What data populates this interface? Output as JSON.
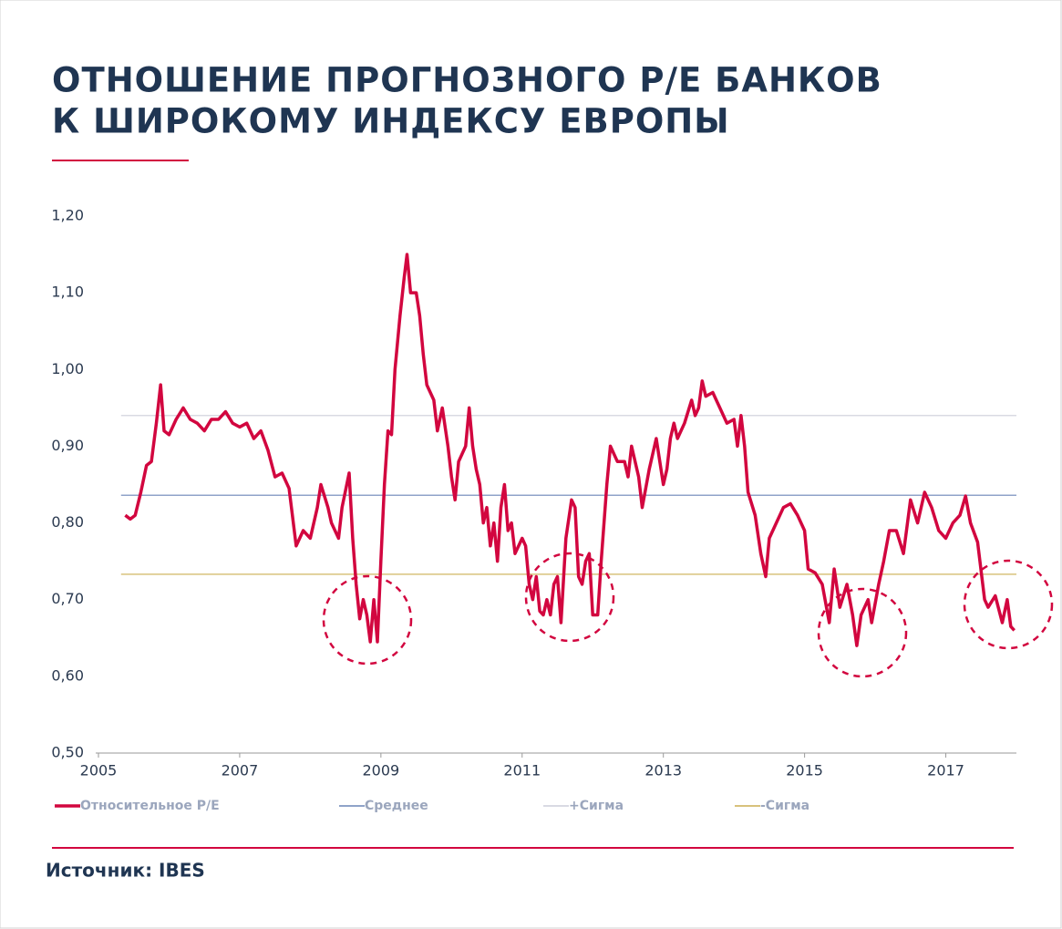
{
  "chart_data": {
    "type": "line",
    "title": [
      "ОТНОШЕНИЕ ПРОГНОЗНОГО Р/Е БАНКОВ",
      "К ШИРОКОМУ ИНДЕКСУ ЕВРОПЫ"
    ],
    "source": "Источник: IBES",
    "xlim": [
      2005,
      2018
    ],
    "xticks": [
      2005,
      2007,
      2009,
      2011,
      2013,
      2015,
      2017
    ],
    "ylim": [
      0.5,
      1.2
    ],
    "yticks": [
      {
        "value": 0.5,
        "label": "0,50"
      },
      {
        "value": 0.6,
        "label": "0,60"
      },
      {
        "value": 0.7,
        "label": "0,70"
      },
      {
        "value": 0.8,
        "label": "0,80"
      },
      {
        "value": 0.9,
        "label": "0,90"
      },
      {
        "value": 1.0,
        "label": "1,00"
      },
      {
        "value": 1.1,
        "label": "1,10"
      },
      {
        "value": 1.2,
        "label": "1,20"
      }
    ],
    "series": [
      {
        "name": "Относительное Р/Е",
        "color": "#d2063f",
        "x": [
          2005.38,
          2005.45,
          2005.52,
          2005.6,
          2005.68,
          2005.75,
          2005.82,
          2005.88,
          2005.93,
          2006.0,
          2006.1,
          2006.2,
          2006.3,
          2006.4,
          2006.5,
          2006.6,
          2006.7,
          2006.8,
          2006.9,
          2007.0,
          2007.1,
          2007.2,
          2007.3,
          2007.4,
          2007.5,
          2007.6,
          2007.7,
          2007.8,
          2007.9,
          2008.0,
          2008.1,
          2008.15,
          2008.25,
          2008.3,
          2008.4,
          2008.45,
          2008.55,
          2008.6,
          2008.65,
          2008.7,
          2008.75,
          2008.8,
          2008.85,
          2008.9,
          2008.95,
          2009.0,
          2009.05,
          2009.1,
          2009.15,
          2009.2,
          2009.27,
          2009.33,
          2009.37,
          2009.42,
          2009.5,
          2009.55,
          2009.6,
          2009.65,
          2009.75,
          2009.8,
          2009.87,
          2009.95,
          2010.0,
          2010.05,
          2010.1,
          2010.2,
          2010.25,
          2010.3,
          2010.35,
          2010.4,
          2010.45,
          2010.5,
          2010.55,
          2010.6,
          2010.65,
          2010.7,
          2010.75,
          2010.8,
          2010.85,
          2010.9,
          2011.0,
          2011.05,
          2011.1,
          2011.15,
          2011.2,
          2011.25,
          2011.3,
          2011.35,
          2011.4,
          2011.45,
          2011.5,
          2011.55,
          2011.62,
          2011.7,
          2011.75,
          2011.8,
          2011.85,
          2011.9,
          2011.95,
          2012.0,
          2012.07,
          2012.12,
          2012.2,
          2012.25,
          2012.35,
          2012.45,
          2012.5,
          2012.55,
          2012.65,
          2012.7,
          2012.8,
          2012.9,
          2012.95,
          2013.0,
          2013.05,
          2013.1,
          2013.15,
          2013.2,
          2013.3,
          2013.4,
          2013.45,
          2013.5,
          2013.55,
          2013.6,
          2013.7,
          2013.8,
          2013.9,
          2014.0,
          2014.05,
          2014.1,
          2014.15,
          2014.2,
          2014.3,
          2014.38,
          2014.45,
          2014.5,
          2014.6,
          2014.7,
          2014.8,
          2014.9,
          2015.0,
          2015.05,
          2015.15,
          2015.25,
          2015.35,
          2015.42,
          2015.5,
          2015.6,
          2015.68,
          2015.74,
          2015.8,
          2015.9,
          2015.95,
          2016.05,
          2016.12,
          2016.2,
          2016.3,
          2016.4,
          2016.5,
          2016.6,
          2016.7,
          2016.8,
          2016.9,
          2017.0,
          2017.1,
          2017.2,
          2017.28,
          2017.35,
          2017.45,
          2017.55,
          2017.6,
          2017.7,
          2017.8,
          2017.87,
          2017.92,
          2017.97
        ],
        "values": [
          0.81,
          0.805,
          0.81,
          0.84,
          0.875,
          0.88,
          0.93,
          0.98,
          0.92,
          0.915,
          0.935,
          0.95,
          0.935,
          0.93,
          0.92,
          0.935,
          0.935,
          0.945,
          0.93,
          0.925,
          0.93,
          0.91,
          0.92,
          0.895,
          0.86,
          0.865,
          0.845,
          0.77,
          0.79,
          0.78,
          0.82,
          0.85,
          0.82,
          0.8,
          0.78,
          0.82,
          0.865,
          0.78,
          0.72,
          0.675,
          0.7,
          0.68,
          0.645,
          0.7,
          0.645,
          0.75,
          0.85,
          0.92,
          0.915,
          1.0,
          1.07,
          1.12,
          1.15,
          1.1,
          1.1,
          1.07,
          1.02,
          0.98,
          0.96,
          0.92,
          0.95,
          0.9,
          0.86,
          0.83,
          0.88,
          0.9,
          0.95,
          0.9,
          0.87,
          0.85,
          0.8,
          0.82,
          0.77,
          0.8,
          0.75,
          0.82,
          0.85,
          0.79,
          0.8,
          0.76,
          0.78,
          0.77,
          0.72,
          0.7,
          0.73,
          0.685,
          0.68,
          0.7,
          0.68,
          0.72,
          0.73,
          0.67,
          0.78,
          0.83,
          0.82,
          0.73,
          0.72,
          0.75,
          0.76,
          0.68,
          0.68,
          0.75,
          0.85,
          0.9,
          0.88,
          0.88,
          0.86,
          0.9,
          0.86,
          0.82,
          0.87,
          0.91,
          0.88,
          0.85,
          0.87,
          0.91,
          0.93,
          0.91,
          0.93,
          0.96,
          0.94,
          0.95,
          0.985,
          0.965,
          0.97,
          0.95,
          0.93,
          0.935,
          0.9,
          0.94,
          0.9,
          0.84,
          0.81,
          0.76,
          0.73,
          0.78,
          0.8,
          0.82,
          0.825,
          0.81,
          0.79,
          0.74,
          0.735,
          0.72,
          0.67,
          0.74,
          0.69,
          0.72,
          0.68,
          0.64,
          0.68,
          0.7,
          0.67,
          0.72,
          0.75,
          0.79,
          0.79,
          0.76,
          0.83,
          0.8,
          0.84,
          0.82,
          0.79,
          0.78,
          0.8,
          0.81,
          0.835,
          0.8,
          0.775,
          0.7,
          0.69,
          0.705,
          0.67,
          0.7,
          0.665,
          0.66
        ]
      },
      {
        "name": "Среднее",
        "color": "#8fa3c9",
        "x": [
          2005.32,
          2018
        ],
        "values": [
          0.836,
          0.836
        ]
      },
      {
        "name": "+Сигма",
        "color": "#d9dae3",
        "x": [
          2005.32,
          2018
        ],
        "values": [
          0.94,
          0.94
        ]
      },
      {
        "name": "-Сигма",
        "color": "#d8c27c",
        "x": [
          2005.32,
          2018
        ],
        "values": [
          0.733,
          0.733
        ]
      }
    ]
  }
}
